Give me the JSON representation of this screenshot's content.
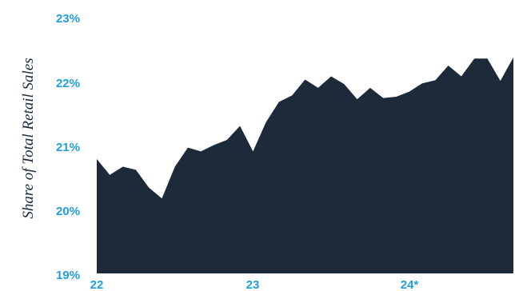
{
  "chart_data": {
    "type": "area",
    "title": "",
    "ylabel": "Share of Total Retail Sales",
    "xlabel": "",
    "ylim": [
      19,
      23
    ],
    "y_ticks": [
      "19%",
      "20%",
      "21%",
      "22%",
      "23%"
    ],
    "x_ticks": [
      "22",
      "23",
      "24*"
    ],
    "grid": false,
    "colors": {
      "fill": "#1d2a3a",
      "ticks": "#1ea0e0"
    },
    "series": [
      {
        "values": [
          20.8,
          20.55,
          20.68,
          20.63,
          20.35,
          20.18,
          20.68,
          20.98,
          20.92,
          21.02,
          21.1,
          21.32,
          20.92,
          21.38,
          21.7,
          21.8,
          22.05,
          21.92,
          22.1,
          21.98,
          21.74,
          21.92,
          21.76,
          21.78,
          21.86,
          21.99,
          22.04,
          22.27,
          22.1,
          22.38,
          22.38,
          22.03,
          22.4
        ]
      }
    ]
  }
}
